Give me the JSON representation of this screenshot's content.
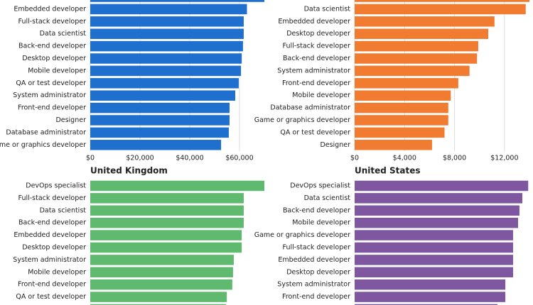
{
  "chart_data": [
    {
      "type": "bar",
      "orientation": "horizontal",
      "color": "#1f6fcf",
      "categories": [
        null,
        "Embedded developer",
        "Full-stack developer",
        "Data scientist",
        "Back-end developer",
        "Desktop developer",
        "Mobile developer",
        "QA or test developer",
        "System administrator",
        "Front-end developer",
        "Designer",
        "Database administrator",
        "Game or graphics developer"
      ],
      "values": [
        70000,
        63000,
        61700,
        61700,
        61400,
        60900,
        60600,
        59700,
        58300,
        56000,
        56000,
        55700,
        52600
      ],
      "xlim": [
        0,
        70000
      ],
      "xticks": [
        {
          "value": 0,
          "label": "$0"
        },
        {
          "value": 20000,
          "label": "$20,000"
        },
        {
          "value": 40000,
          "label": "$40,000"
        },
        {
          "value": 60000,
          "label": "$60,000"
        }
      ],
      "grid": true
    },
    {
      "type": "bar",
      "orientation": "horizontal",
      "color": "#f17b30",
      "categories": [
        null,
        "Data scientist",
        "Embedded developer",
        "Desktop developer",
        "Full-stack developer",
        "Back-end developer",
        "System administrator",
        "Front-end developer",
        "Mobile developer",
        "Database administrator",
        "Game or graphics developer",
        "QA or test developer",
        "Designer"
      ],
      "values": [
        14000,
        13700,
        11200,
        10700,
        9900,
        9800,
        9200,
        8300,
        7700,
        7500,
        7500,
        7200,
        6200
      ],
      "xlim": [
        0,
        14000
      ],
      "xticks": [
        {
          "value": 0,
          "label": "$0"
        },
        {
          "value": 4000,
          "label": "$4,000"
        },
        {
          "value": 8000,
          "label": "$8,000"
        },
        {
          "value": 12000,
          "label": "$12,000"
        }
      ],
      "grid": true
    },
    {
      "type": "bar",
      "orientation": "horizontal",
      "color": "#5fba70",
      "title": "United Kingdom",
      "categories": [
        "DevOps specialist",
        "Full-stack developer",
        "Data scientist",
        "Back-end developer",
        "Embedded developer",
        "Desktop developer",
        "System administrator",
        "Mobile developer",
        "Front-end developer",
        "QA or test developer",
        null
      ],
      "values": [
        70000,
        61700,
        61700,
        61700,
        60900,
        60900,
        57700,
        57400,
        57100,
        54900,
        54600
      ],
      "xlim": [
        0,
        70000
      ]
    },
    {
      "type": "bar",
      "orientation": "horizontal",
      "color": "#7f57a1",
      "title": "United States",
      "categories": [
        "DevOps specialist",
        "Data scientist",
        "Back-end developer",
        "Mobile developer",
        "Game or graphics developer",
        "Full-stack developer",
        "Embedded developer",
        "Desktop developer",
        "System administrator",
        "Front-end developer",
        null
      ],
      "values": [
        139000,
        134300,
        132000,
        130900,
        126900,
        126900,
        126900,
        126900,
        120700,
        120700,
        114400
      ],
      "xlim": [
        0,
        140000
      ]
    }
  ]
}
